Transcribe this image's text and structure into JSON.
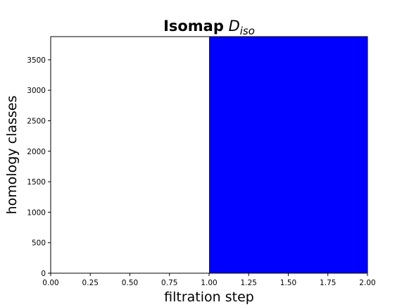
{
  "chart_data": {
    "type": "barcode",
    "title": "Isomap",
    "title_symbol": "D",
    "title_subscript": "iso",
    "x_label": "filtration step",
    "y_label": "homology classes",
    "bars": [
      {
        "start": 1,
        "end": 2,
        "count": 3880
      }
    ],
    "color": "#0000ff",
    "xlim": [
      0,
      2
    ],
    "xticks": [
      {
        "value": 0,
        "label": "0.00"
      },
      {
        "value": 0.25,
        "label": "0.25"
      },
      {
        "value": 0.5,
        "label": "0.50"
      },
      {
        "value": 0.75,
        "label": "0.75"
      },
      {
        "value": 1,
        "label": "1.00"
      },
      {
        "value": 1.25,
        "label": "1.25"
      },
      {
        "value": 1.5,
        "label": "1.50"
      },
      {
        "value": 1.75,
        "label": "1.75"
      },
      {
        "value": 2,
        "label": "2.00"
      }
    ],
    "ylim": [
      0,
      3880
    ],
    "yticks": [
      0,
      500,
      1000,
      1500,
      2000,
      2500,
      3000,
      3500
    ]
  }
}
